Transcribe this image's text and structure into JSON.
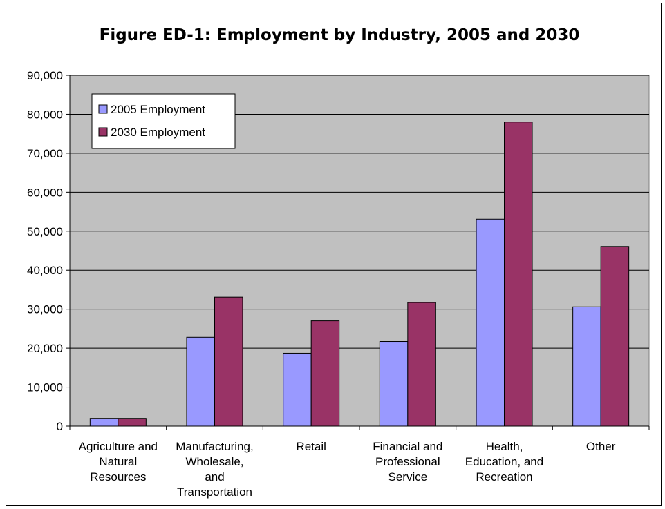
{
  "chart_data": {
    "type": "bar",
    "title": "Figure ED-1: Employment by Industry, 2005 and 2030",
    "categories": [
      [
        "Agriculture and",
        "Natural",
        "Resources"
      ],
      [
        "Manufacturing,",
        "Wholesale,",
        "and",
        "Transportation"
      ],
      [
        "Retail"
      ],
      [
        "Financial and",
        "Professional",
        "Service"
      ],
      [
        "Health,",
        "Education, and",
        "Recreation"
      ],
      [
        "Other"
      ]
    ],
    "series": [
      {
        "name": "2005 Employment",
        "color": "#9999ff",
        "values": [
          2000,
          22800,
          18700,
          21700,
          53100,
          30600
        ]
      },
      {
        "name": "2030 Employment",
        "color": "#993366",
        "values": [
          2000,
          33100,
          27000,
          31700,
          78000,
          46100
        ]
      }
    ],
    "ylim": [
      0,
      90000
    ],
    "yticks": [
      "0",
      "10,000",
      "20,000",
      "30,000",
      "40,000",
      "50,000",
      "60,000",
      "70,000",
      "80,000",
      "90,000"
    ],
    "grid": true,
    "legend": "top-left",
    "plot_background": "#c0c0c0"
  }
}
